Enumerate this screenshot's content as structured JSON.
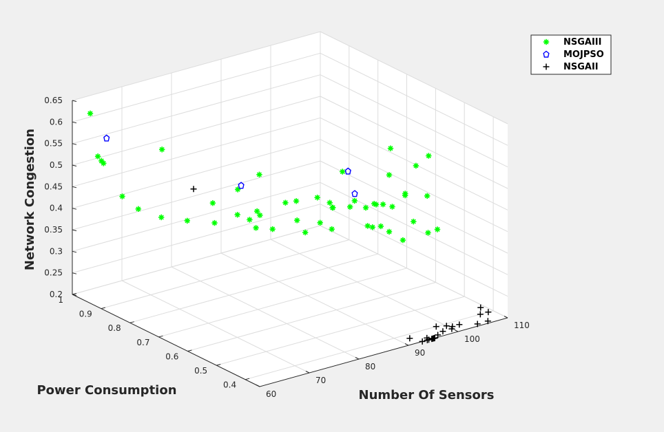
{
  "chart_data": {
    "type": "scatter3d",
    "title": "",
    "xlabel": "Number Of Sensors",
    "ylabel": "Power Consumption",
    "zlabel": "Network Congestion",
    "xlim": [
      60,
      110
    ],
    "ylim": [
      0.35,
      1.0
    ],
    "zlim": [
      0.2,
      0.65
    ],
    "xticks": [
      60,
      70,
      80,
      90,
      100,
      110
    ],
    "yticks": [
      0.4,
      0.5,
      0.6,
      0.7,
      0.8,
      0.9,
      1
    ],
    "zticks": [
      0.2,
      0.25,
      0.3,
      0.35,
      0.4,
      0.45,
      0.5,
      0.55,
      0.6,
      0.65
    ],
    "grid": true,
    "legend_position": "top-right",
    "series": [
      {
        "name": "NSGAIII",
        "marker": "asterisk",
        "color": "#00ff00",
        "points": [
          [
            60.5,
            0.92,
            0.545
          ],
          [
            60.7,
            0.95,
            0.634
          ],
          [
            61.8,
            0.93,
            0.527
          ],
          [
            62.8,
            0.94,
            0.515
          ],
          [
            63.1,
            0.88,
            0.457
          ],
          [
            64.0,
            0.84,
            0.438
          ],
          [
            64.0,
            0.76,
            0.445
          ],
          [
            66.9,
            0.72,
            0.441
          ],
          [
            68.2,
            0.83,
            0.566
          ],
          [
            69.5,
            0.67,
            0.444
          ],
          [
            70.3,
            0.69,
            0.481
          ],
          [
            73.6,
            0.66,
            0.512
          ],
          [
            71.2,
            0.62,
            0.474
          ],
          [
            72.5,
            0.6,
            0.465
          ],
          [
            74.0,
            0.59,
            0.474
          ],
          [
            74.8,
            0.56,
            0.449
          ],
          [
            74.0,
            0.6,
            0.48
          ],
          [
            76.2,
            0.63,
            0.548
          ],
          [
            78.0,
            0.53,
            0.469
          ],
          [
            78.5,
            0.51,
            0.446
          ],
          [
            80.9,
            0.5,
            0.464
          ],
          [
            81.5,
            0.52,
            0.514
          ],
          [
            82.1,
            0.48,
            0.452
          ],
          [
            82.9,
            0.49,
            0.496
          ],
          [
            83.4,
            0.5,
            0.491
          ],
          [
            86.0,
            0.51,
            0.563
          ],
          [
            87.0,
            0.44,
            0.457
          ],
          [
            87.4,
            0.43,
            0.456
          ],
          [
            86.7,
            0.48,
            0.503
          ],
          [
            88.5,
            0.42,
            0.458
          ],
          [
            89.3,
            0.45,
            0.496
          ],
          [
            89.6,
            0.41,
            0.445
          ],
          [
            91.2,
            0.39,
            0.427
          ],
          [
            94.0,
            0.43,
            0.513
          ],
          [
            94.5,
            0.41,
            0.453
          ],
          [
            96.4,
            0.39,
            0.606
          ],
          [
            95.0,
            0.41,
            0.581
          ],
          [
            92.5,
            0.46,
            0.551
          ],
          [
            93.4,
            0.42,
            0.514
          ],
          [
            92.2,
            0.45,
            0.617
          ],
          [
            84.0,
            0.52,
            0.494
          ],
          [
            90.1,
            0.44,
            0.497
          ],
          [
            79.0,
            0.55,
            0.504
          ],
          [
            85.2,
            0.47,
            0.497
          ],
          [
            90.8,
            0.42,
            0.496
          ],
          [
            97.0,
            0.37,
            0.44
          ],
          [
            95.7,
            0.38,
            0.433
          ],
          [
            77.4,
            0.56,
            0.502
          ],
          [
            73.2,
            0.59,
            0.447
          ],
          [
            87.8,
            0.46,
            0.49
          ],
          [
            88.9,
            0.45,
            0.499
          ],
          [
            96.1,
            0.39,
            0.514
          ]
        ]
      },
      {
        "name": "MOJPSO",
        "marker": "diamond",
        "color": "#0000ff",
        "points": [
          [
            64.0,
            0.95,
            0.566
          ],
          [
            73.7,
            0.65,
            0.524
          ],
          [
            84.8,
            0.47,
            0.581
          ],
          [
            84.4,
            0.44,
            0.54
          ]
        ]
      },
      {
        "name": "NSGAII",
        "marker": "plus",
        "color": "#000000",
        "points": [
          [
            70.5,
            0.76,
            0.49
          ],
          [
            92.8,
            0.35,
            0.2
          ],
          [
            93.8,
            0.35,
            0.2
          ],
          [
            94.1,
            0.35,
            0.2
          ],
          [
            94.7,
            0.35,
            0.2
          ],
          [
            94.9,
            0.35,
            0.2
          ],
          [
            95.3,
            0.35,
            0.2
          ],
          [
            95.1,
            0.35,
            0.2
          ],
          [
            95.2,
            0.35,
            0.2
          ],
          [
            94.3,
            0.36,
            0.2
          ],
          [
            96.5,
            0.36,
            0.2
          ],
          [
            98.1,
            0.37,
            0.2
          ],
          [
            98.5,
            0.4,
            0.2
          ],
          [
            99.9,
            0.37,
            0.2
          ],
          [
            100.0,
            0.39,
            0.2
          ],
          [
            100.6,
            0.38,
            0.2
          ],
          [
            102.0,
            0.38,
            0.2
          ],
          [
            104.5,
            0.36,
            0.2
          ],
          [
            106.6,
            0.36,
            0.2
          ],
          [
            107.4,
            0.4,
            0.2
          ],
          [
            109.0,
            0.4,
            0.2
          ],
          [
            109.2,
            0.43,
            0.2
          ],
          [
            92.0,
            0.38,
            0.2
          ]
        ]
      }
    ]
  }
}
